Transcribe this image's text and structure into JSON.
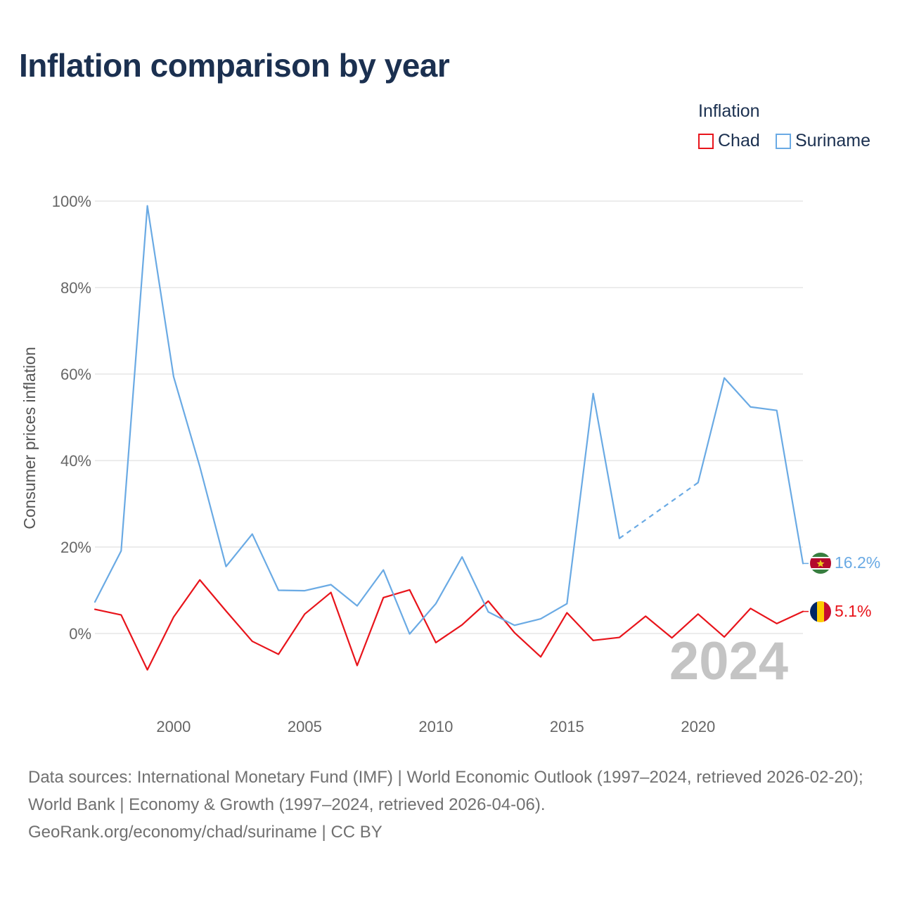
{
  "title": "Inflation comparison by year",
  "legend": {
    "title": "Inflation",
    "items": [
      {
        "name": "Chad",
        "color": "#e8141b"
      },
      {
        "name": "Suriname",
        "color": "#6aaae4"
      }
    ]
  },
  "chart_data": {
    "type": "line",
    "title": "Inflation comparison by year",
    "xlabel": "",
    "ylabel": "Consumer prices inflation",
    "xlim": [
      1997,
      2024
    ],
    "ylim": [
      -10,
      100
    ],
    "x_ticks": [
      2000,
      2005,
      2010,
      2015,
      2020
    ],
    "y_ticks": [
      0,
      20,
      40,
      60,
      80,
      100
    ],
    "y_tick_labels": [
      "0%",
      "20%",
      "40%",
      "60%",
      "80%",
      "100%"
    ],
    "grid": true,
    "x": [
      1997,
      1998,
      1999,
      2000,
      2001,
      2002,
      2003,
      2004,
      2005,
      2006,
      2007,
      2008,
      2009,
      2010,
      2011,
      2012,
      2013,
      2014,
      2015,
      2016,
      2017,
      2018,
      2019,
      2020,
      2021,
      2022,
      2023,
      2024
    ],
    "series": [
      {
        "name": "Chad",
        "color": "#e8141b",
        "values": [
          5.6,
          4.3,
          -8.4,
          3.8,
          12.4,
          5.2,
          -1.8,
          -4.8,
          4.5,
          9.5,
          -7.4,
          8.3,
          10.1,
          -2.1,
          2.0,
          7.5,
          0.2,
          -5.4,
          4.8,
          -1.6,
          -0.9,
          4.0,
          -1.0,
          4.5,
          -0.8,
          5.8,
          2.3,
          5.1
        ],
        "end_label": "5.1%"
      },
      {
        "name": "Suriname",
        "color": "#6aaae4",
        "values": [
          7.3,
          19.1,
          98.9,
          59.4,
          38.6,
          15.5,
          23.0,
          10.0,
          9.9,
          11.3,
          6.4,
          14.7,
          -0.1,
          6.9,
          17.7,
          5.0,
          1.9,
          3.4,
          6.9,
          55.5,
          22.0,
          null,
          null,
          34.9,
          59.1,
          52.4,
          51.6,
          16.2
        ],
        "dashed_gap": {
          "from": 2017,
          "to": 2020
        },
        "end_label": "16.2%"
      }
    ],
    "annotation_year": "2024"
  },
  "source": {
    "line1": "Data sources: International Monetary Fund (IMF) | World Economic Outlook (1997–2024, retrieved 2026-02-20); World Bank | Economy & Growth (1997–2024, retrieved 2026-04-06).",
    "line2": "GeoRank.org/economy/chad/suriname | CC BY"
  }
}
